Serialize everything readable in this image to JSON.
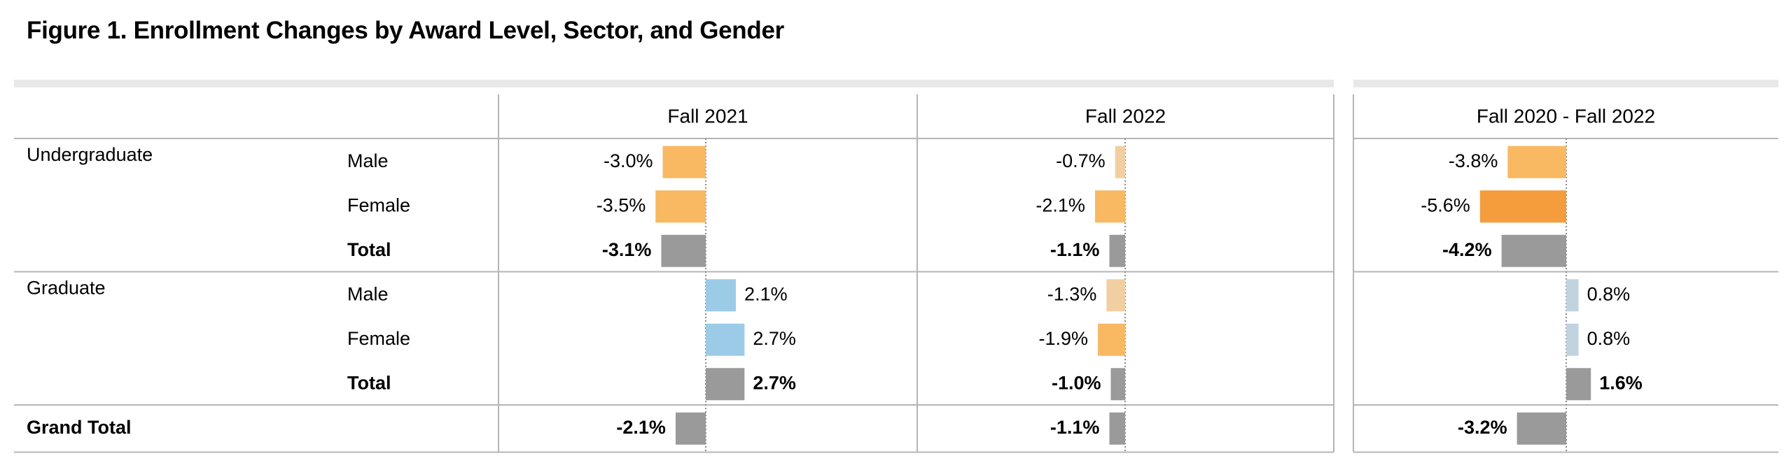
{
  "title": "Figure 1. Enrollment Changes by Award Level, Sector, and Gender",
  "colors": {
    "neg_light": "#f9b862",
    "neg_pale": "#f2cfa3",
    "neg_strong": "#f59c3c",
    "pos_light": "#9ccbe8",
    "pos_pale": "#c1d3de",
    "total": "#9a9a9a",
    "grid": "#b5b5b5",
    "band": "#e8e8e8",
    "zero_line": "#8c8c8c"
  },
  "chart_data": {
    "type": "bar",
    "orientation": "horizontal",
    "columns": [
      "Fall 2021",
      "Fall 2022",
      "Fall 2020 - Fall 2022"
    ],
    "rows": [
      {
        "group": "Undergraduate",
        "label": "Male",
        "bold": false,
        "values": [
          -3.0,
          -0.7,
          -3.8
        ],
        "labels": [
          "-3.0%",
          "-0.7%",
          "-3.8%"
        ],
        "colors": [
          "neg_light",
          "neg_pale",
          "neg_light"
        ]
      },
      {
        "group": "",
        "label": "Female",
        "bold": false,
        "values": [
          -3.5,
          -2.1,
          -5.6
        ],
        "labels": [
          "-3.5%",
          "-2.1%",
          "-5.6%"
        ],
        "colors": [
          "neg_light",
          "neg_light",
          "neg_strong"
        ]
      },
      {
        "group": "",
        "label": "Total",
        "bold": true,
        "values": [
          -3.1,
          -1.1,
          -4.2
        ],
        "labels": [
          "-3.1%",
          "-1.1%",
          "-4.2%"
        ],
        "colors": [
          "total",
          "total",
          "total"
        ]
      },
      {
        "group": "Graduate",
        "label": "Male",
        "bold": false,
        "values": [
          2.1,
          -1.3,
          0.8
        ],
        "labels": [
          "2.1%",
          "-1.3%",
          "0.8%"
        ],
        "colors": [
          "pos_light",
          "neg_pale",
          "pos_pale"
        ]
      },
      {
        "group": "",
        "label": "Female",
        "bold": false,
        "values": [
          2.7,
          -1.9,
          0.8
        ],
        "labels": [
          "2.7%",
          "-1.9%",
          "0.8%"
        ],
        "colors": [
          "pos_light",
          "neg_light",
          "pos_pale"
        ]
      },
      {
        "group": "",
        "label": "Total",
        "bold": true,
        "values": [
          2.7,
          -1.0,
          1.6
        ],
        "labels": [
          "2.7%",
          "-1.0%",
          "1.6%"
        ],
        "colors": [
          "total",
          "total",
          "total"
        ]
      },
      {
        "group": "Grand Total",
        "label": "",
        "bold": true,
        "values": [
          -2.1,
          -1.1,
          -3.2
        ],
        "labels": [
          "-2.1%",
          "-1.1%",
          "-3.2%"
        ],
        "colors": [
          "total",
          "total",
          "total"
        ]
      }
    ]
  }
}
